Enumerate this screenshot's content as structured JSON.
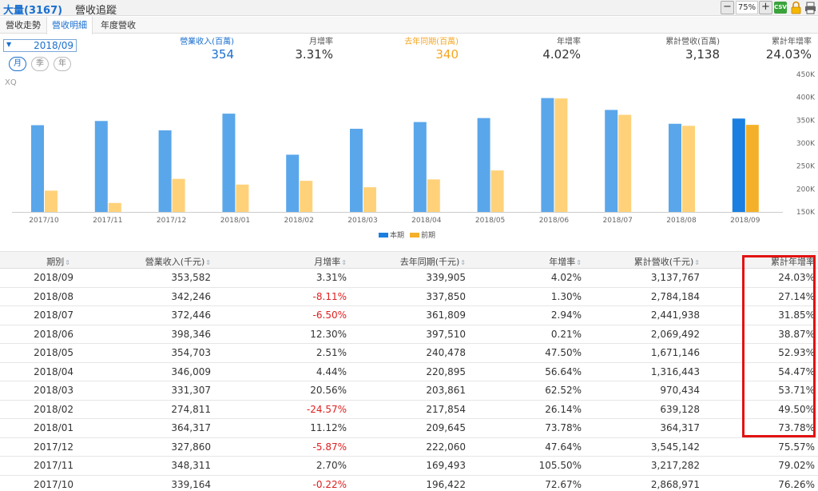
{
  "header": {
    "stock_code": "大量(3167)",
    "title": "營收追蹤",
    "zoom": "75%",
    "zoom_minus": "−",
    "zoom_plus": "+",
    "csv_label": "CSV"
  },
  "tabs": [
    {
      "label": "營收走勢"
    },
    {
      "label": "營收明細"
    },
    {
      "label": "年度營收"
    }
  ],
  "controls": {
    "date_arrow": "▼",
    "date_value": "2018/09",
    "period_buttons": [
      "月",
      "季",
      "年"
    ]
  },
  "summary": [
    {
      "label": "營業收入(百萬)",
      "value": "354",
      "color": "#1a6fcf"
    },
    {
      "label": "月增率",
      "value": "3.31%"
    },
    {
      "label": "去年同期(百萬)",
      "value": "340",
      "color": "#f5a623"
    },
    {
      "label": "年增率",
      "value": "4.02%"
    },
    {
      "label": "累計營收(百萬)",
      "value": "3,138"
    },
    {
      "label": "累計年增率",
      "value": "24.03%"
    }
  ],
  "watermark": "XQ",
  "chart_data": {
    "type": "bar",
    "categories": [
      "2017/10",
      "2017/11",
      "2017/12",
      "2018/01",
      "2018/02",
      "2018/03",
      "2018/04",
      "2018/05",
      "2018/06",
      "2018/07",
      "2018/08",
      "2018/09"
    ],
    "series": [
      {
        "name": "本期",
        "color": "#5aa6ea",
        "values": [
          339164,
          348311,
          327860,
          364317,
          274811,
          331307,
          346009,
          354703,
          398346,
          372446,
          342246,
          353582
        ]
      },
      {
        "name": "前期",
        "color": "#ffd27a",
        "values": [
          196422,
          169493,
          222060,
          209645,
          217854,
          203861,
          220895,
          240478,
          397510,
          361809,
          337850,
          339905
        ]
      }
    ],
    "highlight_index": 11,
    "highlight_colors": [
      "#1a7fe0",
      "#f5b02a"
    ],
    "y_ticks": [
      "450K",
      "400K",
      "350K",
      "300K",
      "250K",
      "200K",
      "150K"
    ],
    "ylim": [
      150000,
      450000
    ],
    "legend": "bottom-center"
  },
  "table": {
    "columns": [
      "期別",
      "營業收入(千元)",
      "月增率",
      "去年同期(千元)",
      "年增率",
      "累計營收(千元)",
      "累計年增率"
    ],
    "sort_icon": "⇕",
    "rows": [
      [
        "2018/09",
        "353,582",
        "3.31%",
        "339,905",
        "4.02%",
        "3,137,767",
        "24.03%"
      ],
      [
        "2018/08",
        "342,246",
        "-8.11%",
        "337,850",
        "1.30%",
        "2,784,184",
        "27.14%"
      ],
      [
        "2018/07",
        "372,446",
        "-6.50%",
        "361,809",
        "2.94%",
        "2,441,938",
        "31.85%"
      ],
      [
        "2018/06",
        "398,346",
        "12.30%",
        "397,510",
        "0.21%",
        "2,069,492",
        "38.87%"
      ],
      [
        "2018/05",
        "354,703",
        "2.51%",
        "240,478",
        "47.50%",
        "1,671,146",
        "52.93%"
      ],
      [
        "2018/04",
        "346,009",
        "4.44%",
        "220,895",
        "56.64%",
        "1,316,443",
        "54.47%"
      ],
      [
        "2018/03",
        "331,307",
        "20.56%",
        "203,861",
        "62.52%",
        "970,434",
        "53.71%"
      ],
      [
        "2018/02",
        "274,811",
        "-24.57%",
        "217,854",
        "26.14%",
        "639,128",
        "49.50%"
      ],
      [
        "2018/01",
        "364,317",
        "11.12%",
        "209,645",
        "73.78%",
        "364,317",
        "73.78%"
      ],
      [
        "2017/12",
        "327,860",
        "-5.87%",
        "222,060",
        "47.64%",
        "3,545,142",
        "75.57%"
      ],
      [
        "2017/11",
        "348,311",
        "2.70%",
        "169,493",
        "105.50%",
        "3,217,282",
        "79.02%"
      ],
      [
        "2017/10",
        "339,164",
        "-0.22%",
        "196,422",
        "72.67%",
        "2,868,971",
        "76.26%"
      ]
    ]
  }
}
